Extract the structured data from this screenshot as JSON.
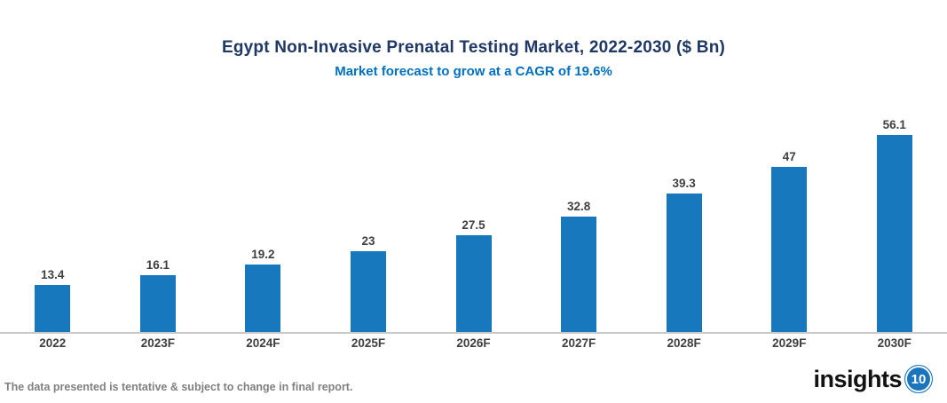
{
  "chart": {
    "title": "Egypt Non-Invasive Prenatal Testing Market, 2022-2030 ($ Bn)",
    "subtitle": "Market forecast to grow at a CAGR of 19.6%"
  },
  "chart_data": {
    "type": "bar",
    "title": "Egypt Non-Invasive Prenatal Testing Market, 2022-2030 ($ Bn)",
    "subtitle": "Market forecast to grow at a CAGR of 19.6%",
    "categories": [
      "2022",
      "2023F",
      "2024F",
      "2025F",
      "2026F",
      "2027F",
      "2028F",
      "2029F",
      "2030F"
    ],
    "values": [
      13.4,
      16.1,
      19.2,
      23,
      27.5,
      32.8,
      39.3,
      47,
      56.1
    ],
    "data_labels": [
      "13.4",
      "16.1",
      "19.2",
      "23",
      "27.5",
      "32.8",
      "39.3",
      "47",
      "56.1"
    ],
    "xlabel": "",
    "ylabel": "",
    "ylim": [
      0,
      60
    ],
    "grid": false,
    "legend": null
  },
  "footer": {
    "disclaimer": "The data presented is tentative & subject to change in final report.",
    "logo_text": "insights",
    "logo_number": "10"
  },
  "colors": {
    "title": "#1F3864",
    "subtitle": "#0070C0",
    "bar": "#1878BE",
    "value_label": "#3F3F3F",
    "axis_label": "#3F3F3F",
    "axis_line": "#C9C9C9",
    "disclaimer": "#808080",
    "logo_circle": "#1B75BC"
  }
}
